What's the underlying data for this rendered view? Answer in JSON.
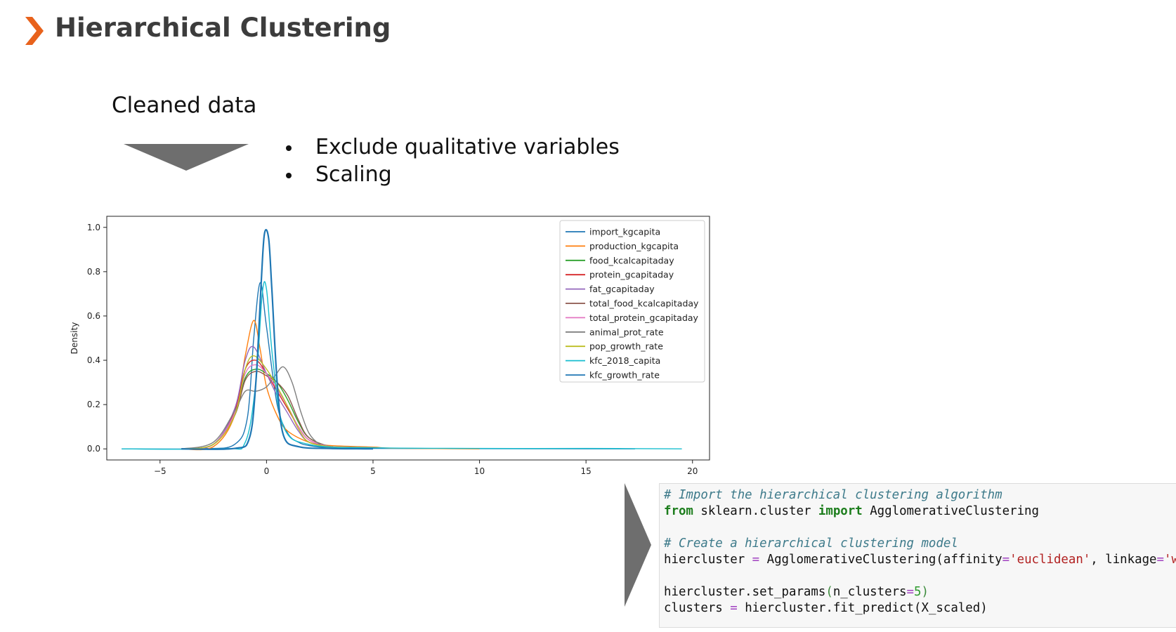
{
  "header": {
    "title": "Hierarchical Clustering",
    "accent_color": "#e8621c",
    "icon": "chevron-right-icon"
  },
  "step": {
    "label": "Cleaned data",
    "arrow_color": "#6e6e6e",
    "bullets": [
      "Exclude qualitative variables",
      "Scaling"
    ]
  },
  "chart_data": {
    "type": "line",
    "title": "",
    "xlabel": "",
    "ylabel": "Density",
    "xlim": [
      -7.5,
      20.8
    ],
    "ylim": [
      -0.05,
      1.05
    ],
    "xticks": [
      -5,
      0,
      5,
      10,
      15,
      20
    ],
    "yticks": [
      0.0,
      0.2,
      0.4,
      0.6,
      0.8,
      1.0
    ],
    "xtick_labels": [
      "−5",
      "0",
      "5",
      "10",
      "15",
      "20"
    ],
    "ytick_labels": [
      "0.0",
      "0.2",
      "0.4",
      "0.6",
      "0.8",
      "1.0"
    ],
    "grid": false,
    "legend": "top-right",
    "series": [
      {
        "name": "import_kgcapita",
        "color": "#1f77b4",
        "x": [
          -6.8,
          -3,
          -1.5,
          -0.9,
          -0.6,
          -0.3,
          0,
          0.5,
          1,
          1.5,
          2,
          3,
          5,
          10,
          17.3
        ],
        "y": [
          0,
          0.001,
          0.02,
          0.14,
          0.5,
          0.75,
          0.55,
          0.2,
          0.07,
          0.03,
          0.015,
          0.005,
          0.002,
          0.001,
          0
        ]
      },
      {
        "name": "production_kgcapita",
        "color": "#ff7f0e",
        "x": [
          -4,
          -2.5,
          -1.5,
          -1,
          -0.6,
          -0.3,
          0,
          0.5,
          1,
          2,
          3,
          5,
          6,
          10
        ],
        "y": [
          0,
          0.01,
          0.15,
          0.42,
          0.58,
          0.45,
          0.28,
          0.15,
          0.08,
          0.03,
          0.015,
          0.008,
          0.003,
          0
        ]
      },
      {
        "name": "food_kcalcapitaday",
        "color": "#2ca02c",
        "x": [
          -4,
          -2.5,
          -1.5,
          -1,
          -0.5,
          0,
          0.5,
          1,
          1.5,
          2,
          3,
          4
        ],
        "y": [
          0,
          0.02,
          0.15,
          0.32,
          0.36,
          0.34,
          0.3,
          0.22,
          0.12,
          0.05,
          0.01,
          0
        ]
      },
      {
        "name": "protein_gcapitaday",
        "color": "#d62728",
        "x": [
          -4,
          -2.5,
          -1.5,
          -1,
          -0.5,
          0,
          0.5,
          1,
          1.5,
          2,
          3,
          4
        ],
        "y": [
          0,
          0.02,
          0.17,
          0.36,
          0.4,
          0.34,
          0.26,
          0.18,
          0.1,
          0.04,
          0.01,
          0
        ]
      },
      {
        "name": "fat_gcapitaday",
        "color": "#9467bd",
        "x": [
          -4,
          -2.5,
          -1.5,
          -1,
          -0.6,
          0,
          0.5,
          1,
          1.5,
          2,
          3,
          4
        ],
        "y": [
          0,
          0.02,
          0.18,
          0.4,
          0.46,
          0.34,
          0.24,
          0.16,
          0.08,
          0.03,
          0.01,
          0
        ]
      },
      {
        "name": "total_food_kcalcapitaday",
        "color": "#8c564b",
        "x": [
          -4,
          -2.5,
          -1.5,
          -1,
          -0.5,
          0,
          0.5,
          1,
          1.5,
          2,
          3,
          4
        ],
        "y": [
          0,
          0.02,
          0.15,
          0.31,
          0.35,
          0.33,
          0.3,
          0.24,
          0.13,
          0.05,
          0.01,
          0
        ]
      },
      {
        "name": "total_protein_gcapitaday",
        "color": "#e377c2",
        "x": [
          -4,
          -2.5,
          -1.5,
          -1,
          -0.5,
          0,
          0.5,
          1,
          1.5,
          2,
          3,
          4
        ],
        "y": [
          0,
          0.02,
          0.16,
          0.34,
          0.38,
          0.34,
          0.27,
          0.19,
          0.1,
          0.04,
          0.01,
          0
        ]
      },
      {
        "name": "animal_prot_rate",
        "color": "#7f7f7f",
        "x": [
          -4,
          -2.5,
          -1.5,
          -1,
          -0.5,
          0,
          0.4,
          0.8,
          1.2,
          1.6,
          2,
          2.5,
          3,
          4
        ],
        "y": [
          0,
          0.03,
          0.17,
          0.26,
          0.26,
          0.28,
          0.33,
          0.37,
          0.3,
          0.17,
          0.07,
          0.02,
          0.005,
          0
        ]
      },
      {
        "name": "pop_growth_rate",
        "color": "#bcbd22",
        "x": [
          -4,
          -2.5,
          -1.5,
          -1,
          -0.6,
          0,
          0.5,
          1,
          1.5,
          2,
          3,
          4
        ],
        "y": [
          0,
          0.02,
          0.15,
          0.36,
          0.42,
          0.36,
          0.28,
          0.19,
          0.09,
          0.03,
          0.01,
          0
        ]
      },
      {
        "name": "kfc_2018_capita",
        "color": "#17becf",
        "x": [
          -6.8,
          -2,
          -1,
          -0.5,
          -0.2,
          0,
          0.3,
          0.8,
          2,
          5,
          10,
          15,
          19.5
        ],
        "y": [
          0,
          0.001,
          0.03,
          0.3,
          0.7,
          0.72,
          0.4,
          0.1,
          0.02,
          0.005,
          0.002,
          0.002,
          0
        ]
      },
      {
        "name": "kfc_growth_rate",
        "color": "#1f77b4",
        "x": [
          -4,
          -1.5,
          -0.8,
          -0.5,
          -0.25,
          -0.1,
          0.1,
          0.25,
          0.5,
          0.8,
          1.5,
          3,
          5
        ],
        "y": [
          0,
          0.002,
          0.05,
          0.3,
          0.75,
          0.97,
          0.95,
          0.72,
          0.3,
          0.06,
          0.01,
          0.002,
          0
        ]
      }
    ]
  },
  "code": {
    "lines": [
      [
        {
          "t": "# Import the hierarchical clustering algorithm",
          "c": "comment"
        }
      ],
      [
        {
          "t": "from",
          "c": "kw"
        },
        {
          "t": " sklearn.cluster ",
          "c": ""
        },
        {
          "t": "import",
          "c": "kw"
        },
        {
          "t": " AgglomerativeClustering",
          "c": ""
        }
      ],
      [],
      [
        {
          "t": "# Create a hierarchical clustering model",
          "c": "comment"
        }
      ],
      [
        {
          "t": "hiercluster ",
          "c": ""
        },
        {
          "t": "=",
          "c": "op"
        },
        {
          "t": " AgglomerativeClustering(affinity",
          "c": ""
        },
        {
          "t": "=",
          "c": "op"
        },
        {
          "t": "'euclidean'",
          "c": "str"
        },
        {
          "t": ", linkage",
          "c": ""
        },
        {
          "t": "=",
          "c": "op"
        },
        {
          "t": "'ward'",
          "c": "str"
        },
        {
          "t": ",",
          "c": ""
        }
      ],
      [],
      [
        {
          "t": "hiercluster.set_params",
          "c": ""
        },
        {
          "t": "(",
          "c": "paren"
        },
        {
          "t": "n_clusters",
          "c": ""
        },
        {
          "t": "=",
          "c": "op"
        },
        {
          "t": "5",
          "c": "num"
        },
        {
          "t": ")",
          "c": "paren"
        }
      ],
      [
        {
          "t": "clusters ",
          "c": ""
        },
        {
          "t": "=",
          "c": "op"
        },
        {
          "t": " hiercluster.fit_predict(X_scaled)",
          "c": ""
        }
      ]
    ]
  }
}
